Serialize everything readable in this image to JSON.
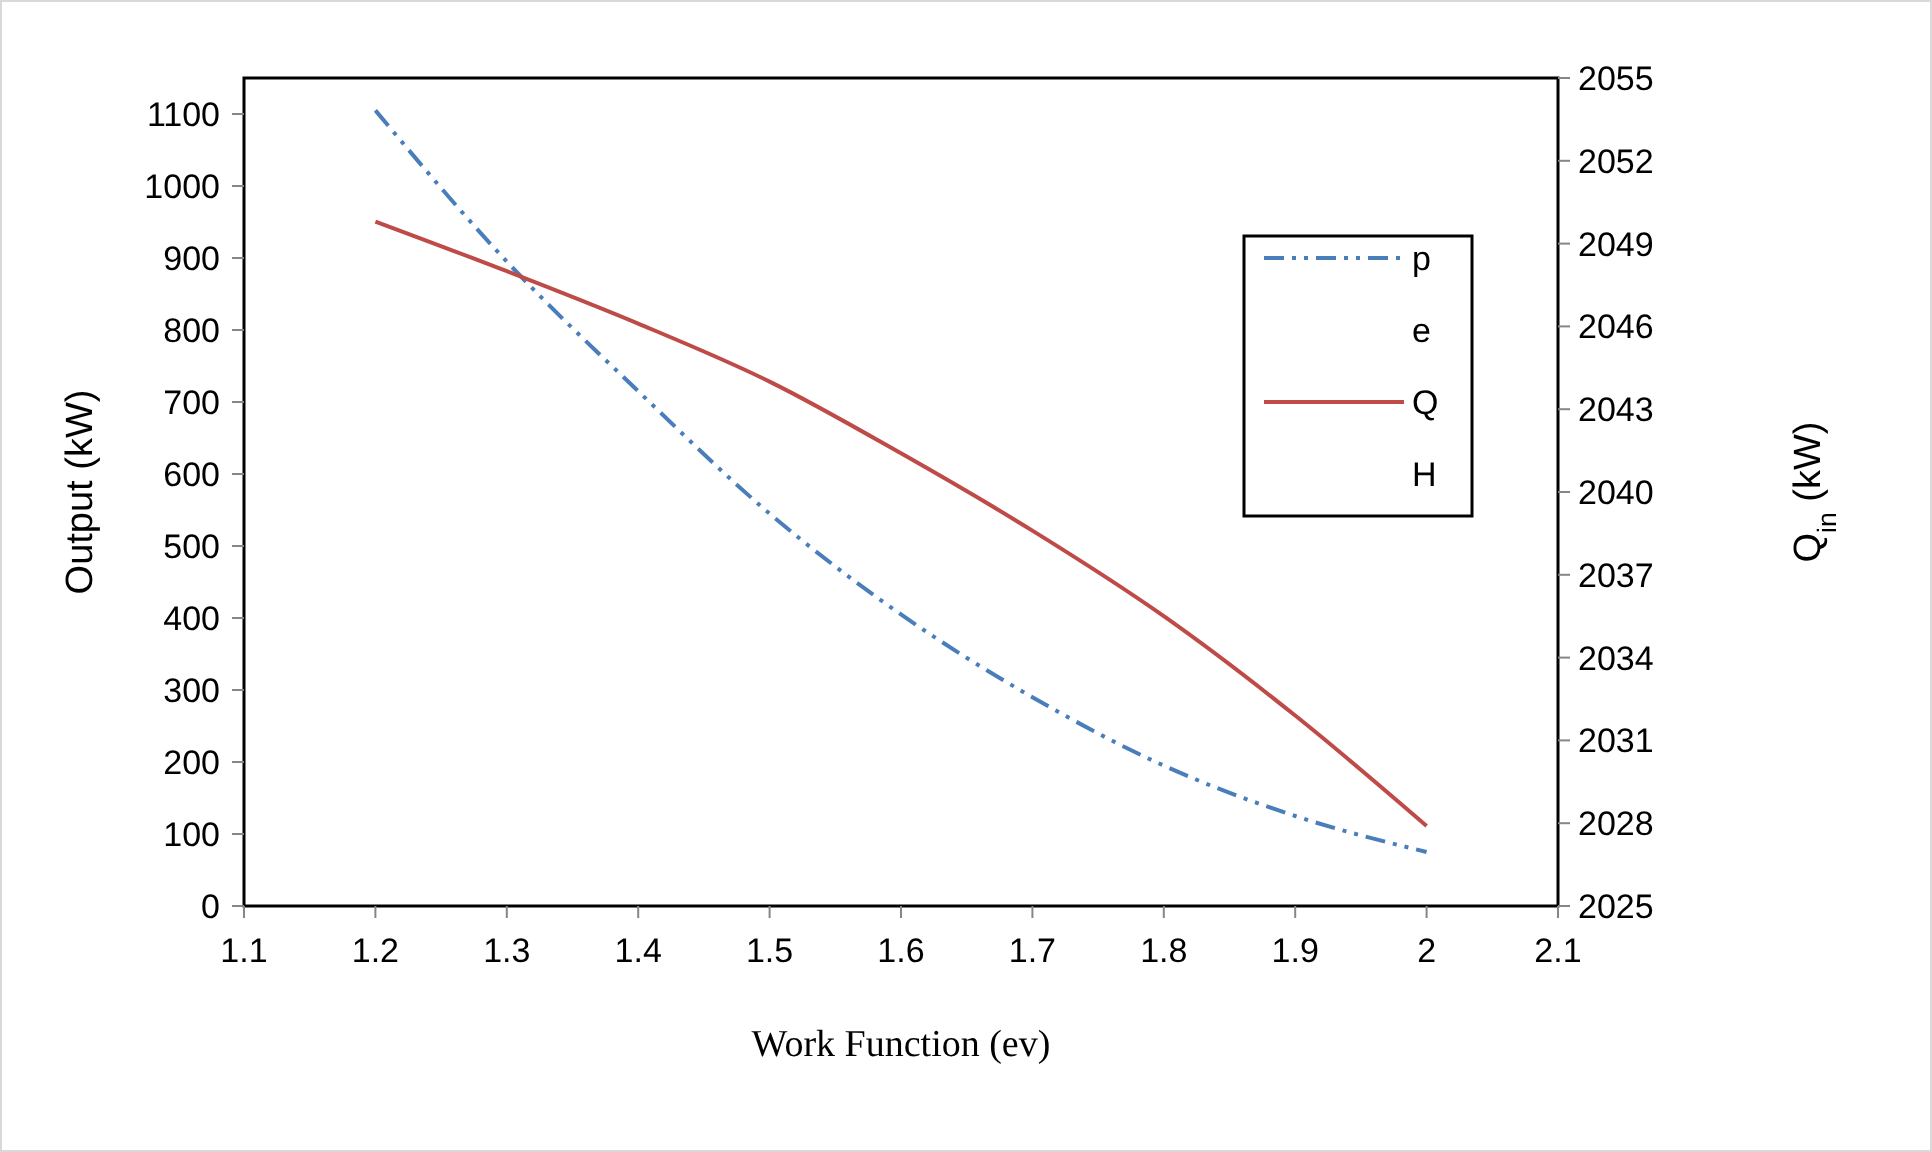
{
  "chart_data": {
    "type": "line",
    "xlabel": "Work Function (ev)",
    "ylabel": "Output (kW)",
    "y2label": "Q$_{in}$ (kW)",
    "x": [
      1.2,
      1.3,
      1.4,
      1.5,
      1.6,
      1.7,
      1.8,
      1.9,
      2.0
    ],
    "xlim": [
      1.1,
      2.1
    ],
    "xticks": [
      1.1,
      1.2,
      1.3,
      1.4,
      1.5,
      1.6,
      1.7,
      1.8,
      1.9,
      {
        "value": 2.0,
        "label": "2"
      },
      2.1
    ],
    "ylim": [
      0,
      1150
    ],
    "yticks": [
      0,
      100,
      200,
      300,
      400,
      500,
      600,
      700,
      800,
      900,
      1000,
      1100
    ],
    "y2lim": [
      2025,
      2055
    ],
    "y2ticks": [
      2025,
      2028,
      2031,
      2034,
      2037,
      2040,
      2043,
      2046,
      2049,
      2052,
      2055
    ],
    "legend": "right",
    "grid": false,
    "series": [
      {
        "name": "pe",
        "color": "#4a7ebb",
        "line_style": "dashdotdot",
        "values": [
          1105,
          895,
          715,
          545,
          405,
          290,
          195,
          125,
          75
        ]
      },
      {
        "name": "QH",
        "color": "#be4b48",
        "axis": "y2",
        "line_style": "solid",
        "values": [
          2049.8,
          2048.0,
          2046.1,
          2044.0,
          2041.4,
          2038.6,
          2035.5,
          2031.9,
          2027.9
        ]
      }
    ]
  }
}
